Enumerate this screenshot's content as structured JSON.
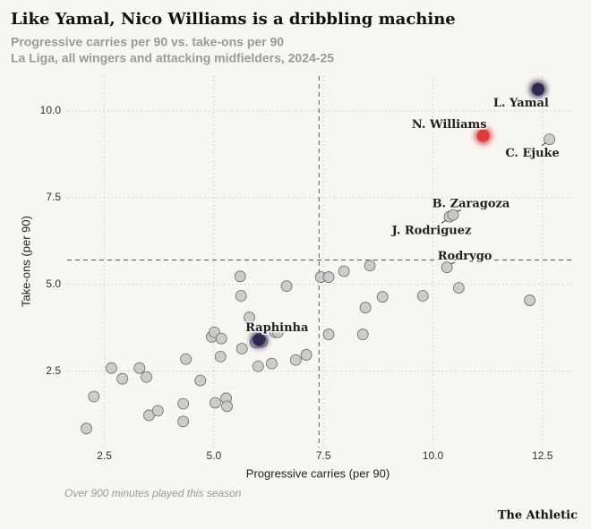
{
  "chart_data": {
    "type": "scatter",
    "title": "Like Yamal, Nico Williams is a dribbling machine",
    "subtitle": [
      "Progressive carries per 90 vs. take-ons per 90",
      "La Liga, all wingers and attacking midfielders, 2024-25"
    ],
    "x_label": "Progressive carries (per 90)",
    "y_label": "Take-ons (per 90)",
    "note": "Over 900 minutes played this season",
    "source": "The Athletic",
    "x": [
      2.09,
      2.26,
      2.66,
      2.91,
      3.3,
      3.46,
      3.52,
      3.72,
      4.3,
      4.3,
      4.36,
      4.69,
      4.95,
      5.01,
      5.03,
      5.17,
      5.15,
      5.28,
      5.3,
      5.6,
      5.62,
      5.64,
      5.81,
      5.95,
      6.01,
      6.32,
      6.4,
      6.46,
      6.66,
      6.87,
      7.11,
      7.44,
      7.62,
      7.62,
      7.97,
      8.4,
      8.46,
      8.56,
      8.85,
      9.77,
      10.59,
      12.21,
      6.1,
      10.32,
      10.38,
      10.46,
      12.66,
      11.15,
      12.4,
      6.03
    ],
    "values": [
      0.85,
      1.77,
      2.59,
      2.28,
      2.59,
      2.33,
      1.23,
      1.36,
      1.56,
      1.05,
      2.85,
      2.23,
      3.49,
      3.62,
      1.59,
      3.44,
      2.92,
      1.72,
      1.49,
      5.23,
      4.67,
      3.15,
      4.05,
      3.33,
      2.64,
      2.72,
      3.62,
      3.62,
      4.95,
      2.82,
      2.97,
      5.21,
      5.21,
      3.56,
      5.38,
      3.56,
      4.33,
      5.54,
      4.64,
      4.67,
      4.9,
      4.54,
      3.35,
      5.49,
      6.95,
      7.0,
      9.18,
      9.28,
      10.62,
      3.41
    ],
    "labels": [
      null,
      null,
      null,
      null,
      null,
      null,
      null,
      null,
      null,
      null,
      null,
      null,
      null,
      null,
      null,
      null,
      null,
      null,
      null,
      null,
      null,
      null,
      null,
      null,
      null,
      null,
      null,
      null,
      null,
      null,
      null,
      null,
      null,
      null,
      null,
      null,
      null,
      null,
      null,
      null,
      null,
      null,
      null,
      "Rodrygo",
      "J. Rodriguez",
      "B. Zaragoza",
      "C. Ejuke",
      "N. Williams",
      "L. Yamal",
      "Raphinha"
    ],
    "color": "#c8c8c8",
    "point_colors": [
      null,
      null,
      null,
      null,
      null,
      null,
      null,
      null,
      null,
      null,
      null,
      null,
      null,
      null,
      null,
      null,
      null,
      null,
      null,
      null,
      null,
      null,
      null,
      null,
      null,
      null,
      null,
      null,
      null,
      null,
      null,
      null,
      null,
      null,
      null,
      null,
      null,
      null,
      null,
      null,
      null,
      null,
      null,
      null,
      null,
      null,
      null,
      "#e0393e",
      "#2e2a52",
      "#2e2a52"
    ],
    "reference_lines": {
      "x": 7.4,
      "y": 5.7
    },
    "xlim": [
      1.65,
      13.2
    ],
    "ylim": [
      0.3,
      11
    ],
    "xticks": [
      2.5,
      {
        "value": 5,
        "label": "5.0"
      },
      7.5,
      {
        "value": 10,
        "label": "10.0"
      },
      12.5
    ],
    "yticks": [
      2.5,
      {
        "value": 5,
        "label": "5.0"
      },
      7.5,
      {
        "value": 10,
        "label": "10.0"
      }
    ],
    "grid": true
  }
}
